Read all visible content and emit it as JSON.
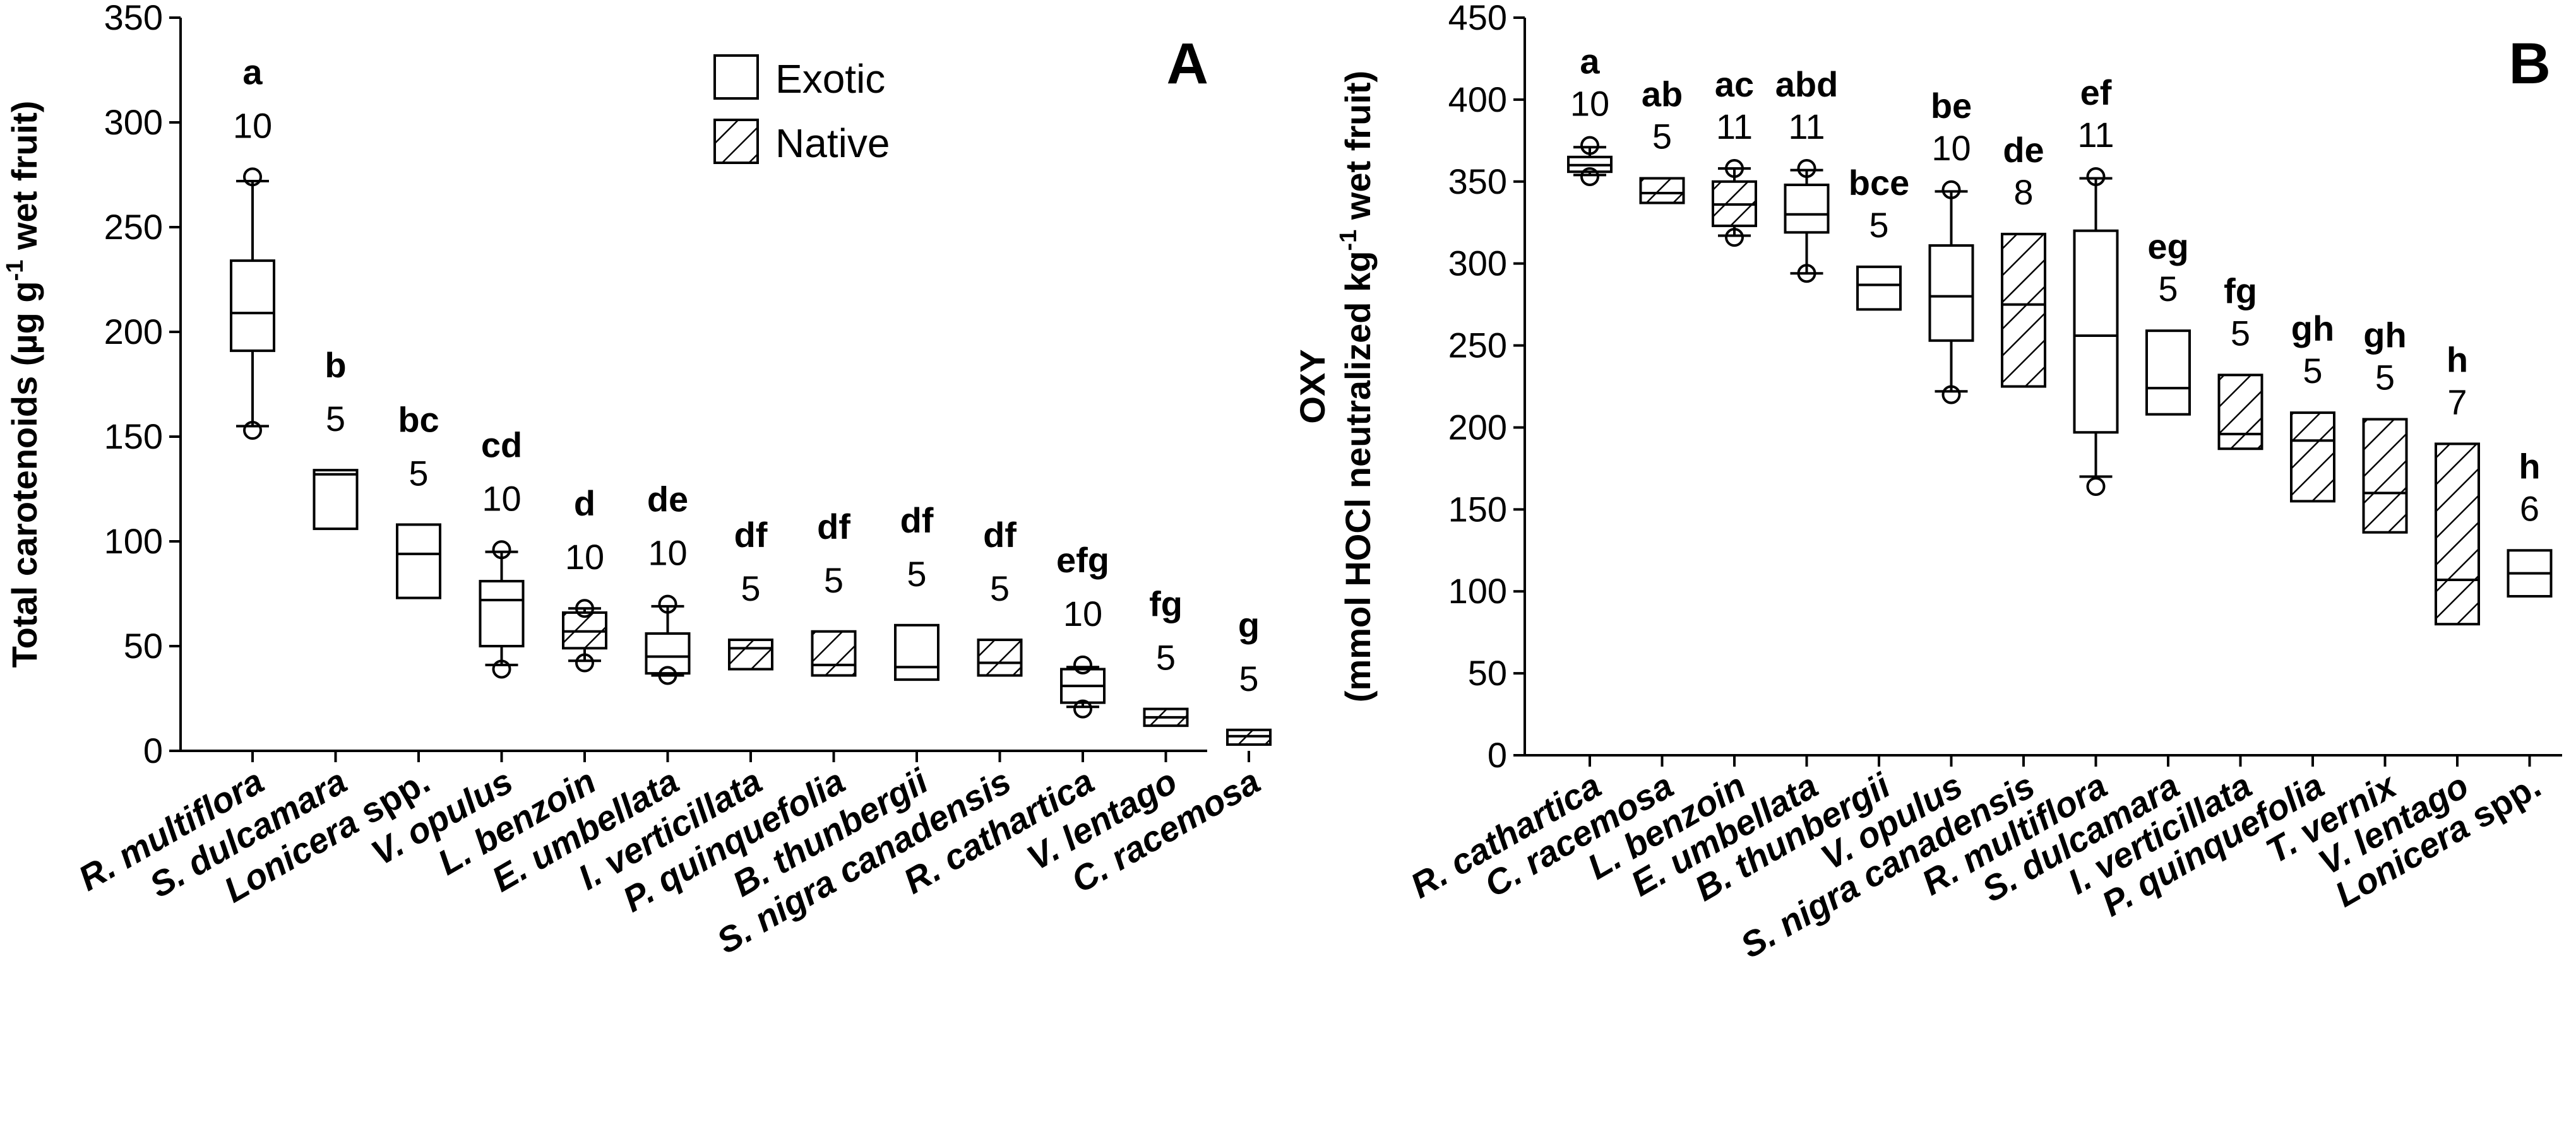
{
  "legend": {
    "exotic_label": "Exotic",
    "native_label": "Native"
  },
  "chart_data": [
    {
      "type": "box",
      "panel": "A",
      "ylabel_parts": [
        "Total carotenoids (µg g",
        "-1",
        " wet fruit)"
      ],
      "ylim": [
        0,
        350
      ],
      "yticks": [
        0,
        50,
        100,
        150,
        200,
        250,
        300,
        350
      ],
      "grid": false,
      "legend_position": "top-right",
      "items": [
        {
          "label": "R. multiflora",
          "label_parts": [
            [
              "R.",
              true
            ],
            [
              " multiflora",
              true
            ]
          ],
          "group": "a",
          "n": "10",
          "type": "exotic",
          "q1": 191,
          "median": 209,
          "q3": 234,
          "whislo": 155,
          "whishi": 272,
          "fliers": [
            153,
            274
          ]
        },
        {
          "label": "S. dulcamara",
          "label_parts": [
            [
              "S. dulcamara",
              true
            ]
          ],
          "group": "b",
          "n": "5",
          "type": "exotic",
          "q1": 106,
          "median": 132,
          "q3": 134,
          "fliers": []
        },
        {
          "label": "Lonicera spp.",
          "label_parts": [
            [
              "Lonicera",
              true
            ],
            [
              " spp.",
              false
            ]
          ],
          "group": "bc",
          "n": "5",
          "type": "exotic",
          "q1": 73,
          "median": 94,
          "q3": 108,
          "fliers": []
        },
        {
          "label": "V. opulus",
          "label_parts": [
            [
              "V. opulus",
              true
            ]
          ],
          "group": "cd",
          "n": "10",
          "type": "exotic",
          "q1": 50,
          "median": 72,
          "q3": 81,
          "whislo": 41,
          "whishi": 95,
          "fliers": [
            39,
            96
          ]
        },
        {
          "label": "L. benzoin",
          "label_parts": [
            [
              "L. benzoin",
              true
            ]
          ],
          "group": "d",
          "n": "10",
          "type": "native",
          "q1": 49,
          "median": 57,
          "q3": 66,
          "whislo": 43,
          "whishi": 68,
          "fliers": [
            42,
            68
          ]
        },
        {
          "label": "E. umbellata",
          "label_parts": [
            [
              "E. umbellata",
              true
            ]
          ],
          "group": "de",
          "n": "10",
          "type": "exotic",
          "q1": 37,
          "median": 45,
          "q3": 56,
          "whislo": 36,
          "whishi": 69,
          "fliers": [
            36,
            70
          ]
        },
        {
          "label": "I. verticillata",
          "label_parts": [
            [
              "I. verticillata",
              true
            ]
          ],
          "group": "df",
          "n": "5",
          "type": "native",
          "q1": 39,
          "median": 49,
          "q3": 53,
          "fliers": []
        },
        {
          "label": "P. quinquefolia",
          "label_parts": [
            [
              "P. quinquefolia",
              true
            ]
          ],
          "group": "df",
          "n": "5",
          "type": "native",
          "q1": 36,
          "median": 41,
          "q3": 57,
          "fliers": []
        },
        {
          "label": "B. thunbergii",
          "label_parts": [
            [
              "B. thunbergii",
              true
            ]
          ],
          "group": "df",
          "n": "5",
          "type": "exotic",
          "q1": 34,
          "median": 40,
          "q3": 60,
          "fliers": []
        },
        {
          "label": "S. nigra canadensis",
          "label_parts": [
            [
              "S. nigra canadensis",
              true
            ]
          ],
          "group": "df",
          "n": "5",
          "type": "native",
          "q1": 36,
          "median": 42,
          "q3": 53,
          "fliers": []
        },
        {
          "label": "R. cathartica",
          "label_parts": [
            [
              "R. cathartica",
              true
            ]
          ],
          "group": "efg",
          "n": "10",
          "type": "exotic",
          "q1": 23,
          "median": 31,
          "q3": 39,
          "whislo": 21,
          "whishi": 40,
          "fliers": [
            20,
            41
          ]
        },
        {
          "label": "V. lentago",
          "label_parts": [
            [
              "V. lentago",
              true
            ]
          ],
          "group": "fg",
          "n": "5",
          "type": "native",
          "q1": 12,
          "median": 16,
          "q3": 20,
          "fliers": []
        },
        {
          "label": "C. racemosa",
          "label_parts": [
            [
              "C. racemosa",
              true
            ]
          ],
          "group": "g",
          "n": "5",
          "type": "native",
          "q1": 3,
          "median": 7,
          "q3": 10,
          "fliers": []
        }
      ]
    },
    {
      "type": "box",
      "panel": "B",
      "ylabel_line1": "OXY",
      "ylabel_parts": [
        "(mmol HOCl neutralized kg",
        "-1",
        " wet fruit)"
      ],
      "ylim": [
        0,
        450
      ],
      "yticks": [
        0,
        50,
        100,
        150,
        200,
        250,
        300,
        350,
        400,
        450
      ],
      "grid": false,
      "items": [
        {
          "label": "R. cathartica",
          "label_parts": [
            [
              "R. cathartica",
              true
            ]
          ],
          "group": "a",
          "n": "10",
          "type": "exotic",
          "q1": 356,
          "median": 360,
          "q3": 365,
          "whislo": 354,
          "whishi": 371,
          "fliers": [
            353,
            372
          ]
        },
        {
          "label": "C. racemosa",
          "label_parts": [
            [
              "C. racemosa",
              true
            ]
          ],
          "group": "ab",
          "n": "5",
          "type": "native",
          "q1": 337,
          "median": 343,
          "q3": 352,
          "fliers": []
        },
        {
          "label": "L. benzoin",
          "label_parts": [
            [
              "L. benzoin",
              true
            ]
          ],
          "group": "ac",
          "n": "11",
          "type": "native",
          "q1": 323,
          "median": 336,
          "q3": 350,
          "whislo": 317,
          "whishi": 358,
          "fliers": [
            316,
            358
          ]
        },
        {
          "label": "E. umbellata",
          "label_parts": [
            [
              "E. umbellata",
              true
            ]
          ],
          "group": "abd",
          "n": "11",
          "type": "exotic",
          "q1": 319,
          "median": 330,
          "q3": 348,
          "whislo": 294,
          "whishi": 357,
          "fliers": [
            294,
            358
          ]
        },
        {
          "label": "B. thunbergii",
          "label_parts": [
            [
              "B. thunbergii",
              true
            ]
          ],
          "group": "bce",
          "n": "5",
          "type": "exotic",
          "q1": 272,
          "median": 287,
          "q3": 298,
          "fliers": []
        },
        {
          "label": "V. opulus",
          "label_parts": [
            [
              "V. opulus",
              true
            ]
          ],
          "group": "be",
          "n": "10",
          "type": "exotic",
          "q1": 253,
          "median": 280,
          "q3": 311,
          "whislo": 222,
          "whishi": 344,
          "fliers": [
            220,
            345
          ]
        },
        {
          "label": "S. nigra canadensis",
          "label_parts": [
            [
              "S. nigra canadensis",
              true
            ]
          ],
          "group": "de",
          "n": "8",
          "type": "native",
          "q1": 225,
          "median": 275,
          "q3": 318,
          "fliers": []
        },
        {
          "label": "R. multiflora",
          "label_parts": [
            [
              "R. multiflora",
              true
            ]
          ],
          "group": "ef",
          "n": "11",
          "type": "exotic",
          "q1": 197,
          "median": 256,
          "q3": 320,
          "whislo": 170,
          "whishi": 352,
          "fliers": [
            164,
            353
          ]
        },
        {
          "label": "S. dulcamara",
          "label_parts": [
            [
              "S. dulcamara",
              true
            ]
          ],
          "group": "eg",
          "n": "5",
          "type": "exotic",
          "q1": 208,
          "median": 224,
          "q3": 259,
          "fliers": []
        },
        {
          "label": "I. verticillata",
          "label_parts": [
            [
              "I. verticillata",
              true
            ]
          ],
          "group": "fg",
          "n": "5",
          "type": "native",
          "q1": 187,
          "median": 196,
          "q3": 232,
          "fliers": []
        },
        {
          "label": "P. quinquefolia",
          "label_parts": [
            [
              "P. quinquefolia",
              true
            ]
          ],
          "group": "gh",
          "n": "5",
          "type": "native",
          "q1": 155,
          "median": 192,
          "q3": 209,
          "fliers": []
        },
        {
          "label": "T. vernix",
          "label_parts": [
            [
              "T. vernix",
              true
            ]
          ],
          "group": "gh",
          "n": "5",
          "type": "native",
          "q1": 136,
          "median": 160,
          "q3": 205,
          "fliers": []
        },
        {
          "label": "V. lentago",
          "label_parts": [
            [
              "V. lentago",
              true
            ]
          ],
          "group": "h",
          "n": "7",
          "type": "native",
          "q1": 80,
          "median": 107,
          "q3": 190,
          "fliers": []
        },
        {
          "label": "Lonicera spp.",
          "label_parts": [
            [
              "Lonicera",
              true
            ],
            [
              " spp.",
              false
            ]
          ],
          "group": "h",
          "n": "6",
          "type": "exotic",
          "q1": 97,
          "median": 111,
          "q3": 125,
          "fliers": []
        }
      ]
    }
  ]
}
